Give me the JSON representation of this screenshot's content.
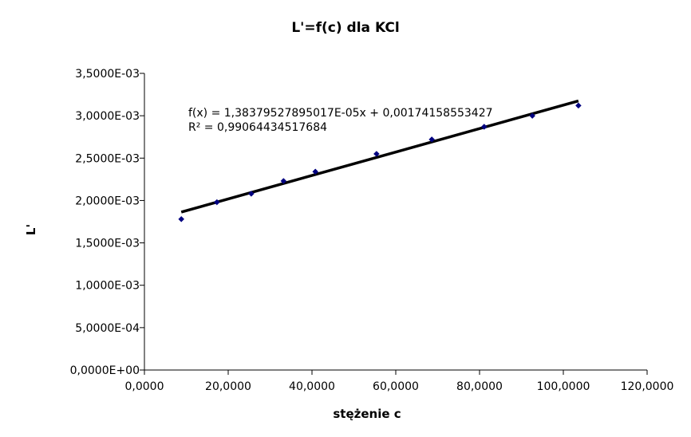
{
  "chart_data": {
    "type": "scatter",
    "title": "L'=f(c) dla KCl",
    "xlabel": "stężenie c",
    "ylabel": "L'",
    "xlim": [
      0,
      120
    ],
    "ylim": [
      0,
      0.0035
    ],
    "x_ticks": [
      0,
      20,
      40,
      60,
      80,
      100,
      120
    ],
    "x_tick_labels": [
      "0,0000",
      "20,0000",
      "40,0000",
      "60,0000",
      "80,0000",
      "100,0000",
      "120,0000"
    ],
    "y_ticks": [
      0,
      0.0005,
      0.001,
      0.0015,
      0.002,
      0.0025,
      0.003,
      0.0035
    ],
    "y_tick_labels": [
      "0,0000E+00",
      "5,0000E-04",
      "1,0000E-03",
      "1,5000E-03",
      "2,0000E-03",
      "2,5000E-03",
      "3,0000E-03",
      "3,5000E-03"
    ],
    "grid": false,
    "marker_color": "#000080",
    "trendline_color": "#000000",
    "series": [
      {
        "x": [
          8.8,
          17.3,
          25.5,
          33.2,
          40.8,
          55.4,
          68.6,
          81.1,
          92.6,
          103.6
        ],
        "y": [
          0.00178,
          0.00198,
          0.00208,
          0.00223,
          0.00234,
          0.00255,
          0.00272,
          0.00287,
          0.003,
          0.00312
        ]
      }
    ],
    "trendline": {
      "slope": 1.38379527895017e-05,
      "intercept": 0.00174158553427,
      "x_range": [
        8.8,
        103.6
      ],
      "equation": "f(x) = 1,38379527895017E-05x + 0,00174158553427",
      "r_squared": "R² = 0,99064434517684"
    }
  }
}
